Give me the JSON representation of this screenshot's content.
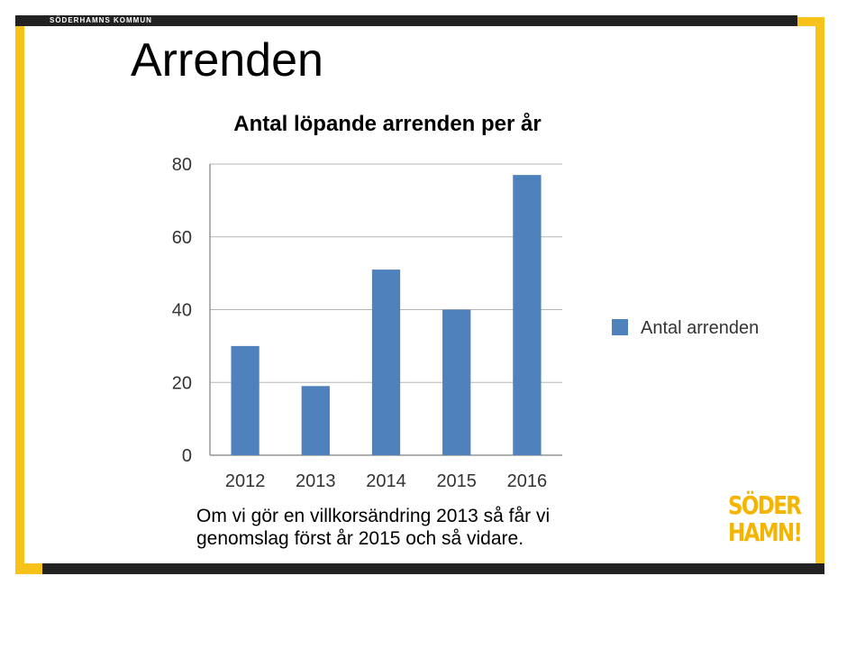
{
  "header": {
    "brand": "SÖDERHAMNS KOMMUN",
    "title": "Arrenden"
  },
  "caption": "Om vi gör en villkorsändring 2013 så får vi genomslag först år 2015 och så vidare.",
  "logo": {
    "line1": "SÖDER",
    "line2": "HAMN!"
  },
  "colors": {
    "bar": "#4f81bd",
    "frame": "#f7c31a",
    "bars_dark": "#222222",
    "logo": "#f4b400"
  },
  "chart_data": {
    "type": "bar",
    "title": "Antal löpande arrenden per år",
    "categories": [
      "2012",
      "2013",
      "2014",
      "2015",
      "2016"
    ],
    "series": [
      {
        "name": "Antal arrenden",
        "values": [
          30,
          19,
          51,
          40,
          77
        ]
      }
    ],
    "ylim": [
      0,
      80
    ],
    "yticks": [
      0,
      20,
      40,
      60,
      80
    ],
    "xlabel": "",
    "ylabel": "",
    "grid": true,
    "legend": "right"
  }
}
